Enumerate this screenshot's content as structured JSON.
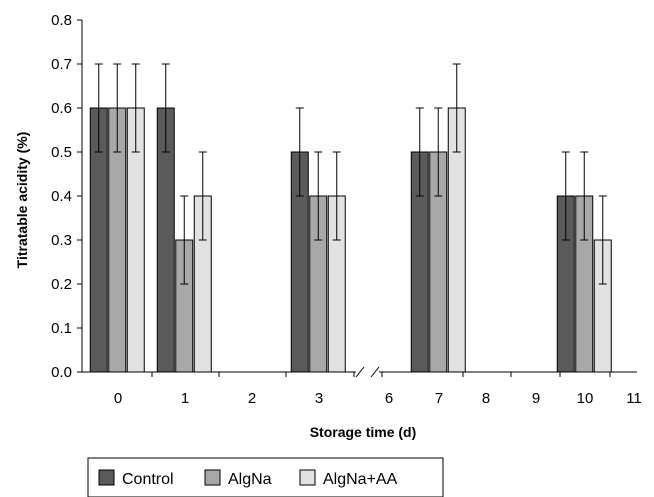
{
  "chart_data": {
    "type": "bar",
    "xlabel": "Storage time (d)",
    "ylabel": "Titratable acidity (%)",
    "ylim": [
      0,
      0.8
    ],
    "y_ticks": [
      "0.0",
      "0.1",
      "0.2",
      "0.3",
      "0.4",
      "0.5",
      "0.6",
      "0.7",
      "0.8"
    ],
    "x_ticks": [
      "0",
      "1",
      "2",
      "3",
      "6",
      "7",
      "8",
      "9",
      "10",
      "11"
    ],
    "axis_break": "between 3 and 6",
    "legend_position": "bottom-left",
    "grid": false,
    "categories": [
      "0",
      "1",
      "3",
      "7",
      "10"
    ],
    "series": [
      {
        "name": "Control",
        "color": "#5a5a5a",
        "values": [
          0.6,
          0.6,
          0.5,
          0.5,
          0.4
        ],
        "errors": [
          0.1,
          0.1,
          0.1,
          0.1,
          0.1
        ]
      },
      {
        "name": "AlgNa",
        "color": "#a8a8a8",
        "values": [
          0.6,
          0.3,
          0.4,
          0.5,
          0.4
        ],
        "errors": [
          0.1,
          0.1,
          0.1,
          0.1,
          0.1
        ]
      },
      {
        "name": "AlgNa+AA",
        "color": "#e2e2e2",
        "values": [
          0.6,
          0.4,
          0.4,
          0.6,
          0.3
        ],
        "errors": [
          0.1,
          0.1,
          0.1,
          0.1,
          0.1
        ]
      }
    ]
  }
}
